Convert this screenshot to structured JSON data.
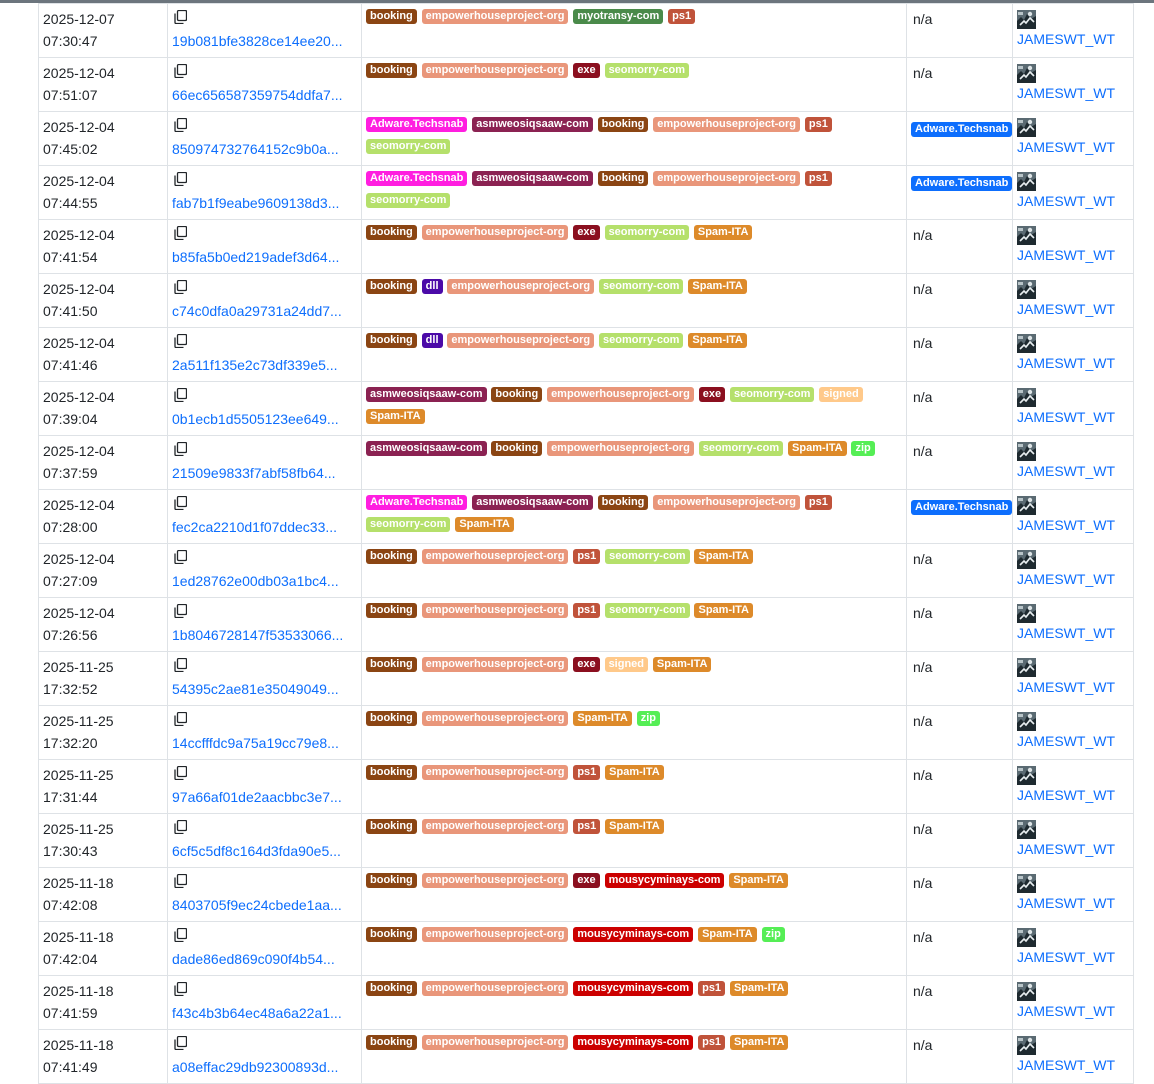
{
  "colors": {
    "booking": "#8b4513",
    "empowerhouseproject-org": "#e9967a",
    "myotransy-com": "#4a8a4a",
    "ps1": "#c0533a",
    "exe": "#8b0f1f",
    "seomorry-com": "#b5e06b",
    "Adware.Techsnab": "#ff1ee0",
    "asmweosiqsaaw-com": "#8b2252",
    "Spam-ITA": "#dd8a2a",
    "dll": "#4b0aa8",
    "signed": "#ffc98a",
    "zip": "#55ee55",
    "mousycyminays-com": "#cc0000",
    "signature_badge": "#0d6efd",
    "link": "#0d6efd"
  },
  "icons": {
    "copy": "copy-icon",
    "avatar": "reporter-avatar-icon"
  },
  "rows": [
    {
      "date": "2025-12-07",
      "time": "07:30:47",
      "hash": "19b081bfe3828ce14ee20...",
      "tags": [
        "booking",
        "empowerhouseproject-org",
        "myotransy-com",
        "ps1"
      ],
      "signature": "n/a",
      "reporter": "JAMESWT_WT"
    },
    {
      "date": "2025-12-04",
      "time": "07:51:07",
      "hash": "66ec656587359754ddfa7...",
      "tags": [
        "booking",
        "empowerhouseproject-org",
        "exe",
        "seomorry-com"
      ],
      "signature": "n/a",
      "reporter": "JAMESWT_WT"
    },
    {
      "date": "2025-12-04",
      "time": "07:45:02",
      "hash": "850974732764152c9b0a...",
      "tags": [
        "Adware.Techsnab",
        "asmweosiqsaaw-com",
        "booking",
        "empowerhouseproject-org",
        "ps1",
        "seomorry-com"
      ],
      "signature": "Adware.Techsnab",
      "reporter": "JAMESWT_WT"
    },
    {
      "date": "2025-12-04",
      "time": "07:44:55",
      "hash": "fab7b1f9eabe9609138d3...",
      "tags": [
        "Adware.Techsnab",
        "asmweosiqsaaw-com",
        "booking",
        "empowerhouseproject-org",
        "ps1",
        "seomorry-com"
      ],
      "signature": "Adware.Techsnab",
      "reporter": "JAMESWT_WT"
    },
    {
      "date": "2025-12-04",
      "time": "07:41:54",
      "hash": "b85fa5b0ed219adef3d64...",
      "tags": [
        "booking",
        "empowerhouseproject-org",
        "exe",
        "seomorry-com",
        "Spam-ITA"
      ],
      "signature": "n/a",
      "reporter": "JAMESWT_WT"
    },
    {
      "date": "2025-12-04",
      "time": "07:41:50",
      "hash": "c74c0dfa0a29731a24dd7...",
      "tags": [
        "booking",
        "dll",
        "empowerhouseproject-org",
        "seomorry-com",
        "Spam-ITA"
      ],
      "signature": "n/a",
      "reporter": "JAMESWT_WT"
    },
    {
      "date": "2025-12-04",
      "time": "07:41:46",
      "hash": "2a511f135e2c73df339e5...",
      "tags": [
        "booking",
        "dll",
        "empowerhouseproject-org",
        "seomorry-com",
        "Spam-ITA"
      ],
      "signature": "n/a",
      "reporter": "JAMESWT_WT"
    },
    {
      "date": "2025-12-04",
      "time": "07:39:04",
      "hash": "0b1ecb1d5505123ee649...",
      "tags": [
        "asmweosiqsaaw-com",
        "booking",
        "empowerhouseproject-org",
        "exe",
        "seomorry-com",
        "signed",
        "Spam-ITA"
      ],
      "signature": "n/a",
      "reporter": "JAMESWT_WT"
    },
    {
      "date": "2025-12-04",
      "time": "07:37:59",
      "hash": "21509e9833f7abf58fb64...",
      "tags": [
        "asmweosiqsaaw-com",
        "booking",
        "empowerhouseproject-org",
        "seomorry-com",
        "Spam-ITA",
        "zip"
      ],
      "signature": "n/a",
      "reporter": "JAMESWT_WT"
    },
    {
      "date": "2025-12-04",
      "time": "07:28:00",
      "hash": "fec2ca2210d1f07ddec33...",
      "tags": [
        "Adware.Techsnab",
        "asmweosiqsaaw-com",
        "booking",
        "empowerhouseproject-org",
        "ps1",
        "seomorry-com",
        "Spam-ITA"
      ],
      "signature": "Adware.Techsnab",
      "reporter": "JAMESWT_WT"
    },
    {
      "date": "2025-12-04",
      "time": "07:27:09",
      "hash": "1ed28762e00db03a1bc4...",
      "tags": [
        "booking",
        "empowerhouseproject-org",
        "ps1",
        "seomorry-com",
        "Spam-ITA"
      ],
      "signature": "n/a",
      "reporter": "JAMESWT_WT"
    },
    {
      "date": "2025-12-04",
      "time": "07:26:56",
      "hash": "1b8046728147f53533066...",
      "tags": [
        "booking",
        "empowerhouseproject-org",
        "ps1",
        "seomorry-com",
        "Spam-ITA"
      ],
      "signature": "n/a",
      "reporter": "JAMESWT_WT"
    },
    {
      "date": "2025-11-25",
      "time": "17:32:52",
      "hash": "54395c2ae81e35049049...",
      "tags": [
        "booking",
        "empowerhouseproject-org",
        "exe",
        "signed",
        "Spam-ITA"
      ],
      "signature": "n/a",
      "reporter": "JAMESWT_WT"
    },
    {
      "date": "2025-11-25",
      "time": "17:32:20",
      "hash": "14ccfffdc9a75a19cc79e8...",
      "tags": [
        "booking",
        "empowerhouseproject-org",
        "Spam-ITA",
        "zip"
      ],
      "signature": "n/a",
      "reporter": "JAMESWT_WT"
    },
    {
      "date": "2025-11-25",
      "time": "17:31:44",
      "hash": "97a66af01de2aacbbc3e7...",
      "tags": [
        "booking",
        "empowerhouseproject-org",
        "ps1",
        "Spam-ITA"
      ],
      "signature": "n/a",
      "reporter": "JAMESWT_WT"
    },
    {
      "date": "2025-11-25",
      "time": "17:30:43",
      "hash": "6cf5c5df8c164d3fda90e5...",
      "tags": [
        "booking",
        "empowerhouseproject-org",
        "ps1",
        "Spam-ITA"
      ],
      "signature": "n/a",
      "reporter": "JAMESWT_WT"
    },
    {
      "date": "2025-11-18",
      "time": "07:42:08",
      "hash": "8403705f9ec24cbede1aa...",
      "tags": [
        "booking",
        "empowerhouseproject-org",
        "exe",
        "mousycyminays-com",
        "Spam-ITA"
      ],
      "signature": "n/a",
      "reporter": "JAMESWT_WT"
    },
    {
      "date": "2025-11-18",
      "time": "07:42:04",
      "hash": "dade86ed869c090f4b54...",
      "tags": [
        "booking",
        "empowerhouseproject-org",
        "mousycyminays-com",
        "Spam-ITA",
        "zip"
      ],
      "signature": "n/a",
      "reporter": "JAMESWT_WT"
    },
    {
      "date": "2025-11-18",
      "time": "07:41:59",
      "hash": "f43c4b3b64ec48a6a22a1...",
      "tags": [
        "booking",
        "empowerhouseproject-org",
        "mousycyminays-com",
        "ps1",
        "Spam-ITA"
      ],
      "signature": "n/a",
      "reporter": "JAMESWT_WT"
    },
    {
      "date": "2025-11-18",
      "time": "07:41:49",
      "hash": "a08effac29db92300893d...",
      "tags": [
        "booking",
        "empowerhouseproject-org",
        "mousycyminays-com",
        "ps1",
        "Spam-ITA"
      ],
      "signature": "n/a",
      "reporter": "JAMESWT_WT"
    }
  ]
}
